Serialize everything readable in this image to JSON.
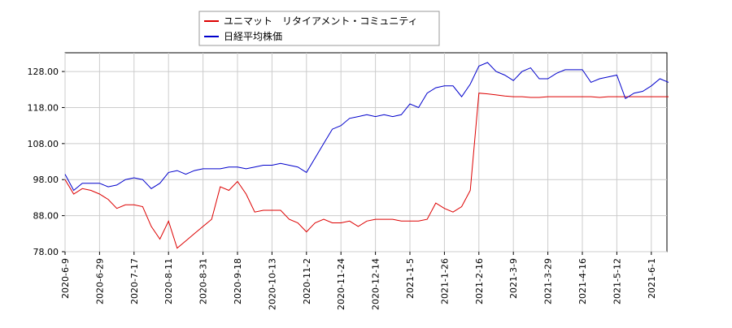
{
  "chart_data": {
    "type": "line",
    "categories": [
      "2020-6-9",
      null,
      null,
      null,
      "2020-6-29",
      null,
      null,
      null,
      "2020-7-17",
      null,
      null,
      null,
      "2020-8-11",
      null,
      null,
      null,
      "2020-8-31",
      null,
      null,
      null,
      "2020-9-18",
      null,
      null,
      null,
      "2020-10-13",
      null,
      null,
      null,
      "2020-11-2",
      null,
      null,
      null,
      "2020-11-24",
      null,
      null,
      null,
      "2020-12-14",
      null,
      null,
      null,
      "2021-1-5",
      null,
      null,
      null,
      "2021-1-26",
      null,
      null,
      null,
      "2021-2-16",
      null,
      null,
      null,
      "2021-3-9",
      null,
      null,
      null,
      "2021-3-29",
      null,
      null,
      null,
      "2021-4-16",
      null,
      null,
      null,
      "2021-5-12",
      null,
      null,
      null,
      "2021-6-1",
      null,
      null
    ],
    "series": [
      {
        "name": "ユニマット　リタイアメント・コミュニティ",
        "color": "#dd0000",
        "values": [
          98,
          94,
          95.5,
          95,
          94,
          92.5,
          90,
          91,
          91,
          90.5,
          85,
          81.5,
          86.5,
          79,
          81,
          83,
          85,
          87,
          96,
          95,
          97.5,
          94,
          89,
          89.5,
          89.5,
          89.5,
          87,
          86,
          83.5,
          86,
          87,
          86,
          86,
          86.5,
          85,
          86.5,
          87,
          87,
          87,
          86.5,
          86.5,
          86.5,
          87,
          91.5,
          90,
          89,
          90.5,
          95,
          122,
          121.8,
          121.5,
          121.2,
          121,
          121,
          120.8,
          120.8,
          121,
          121,
          121,
          121,
          121,
          121,
          120.8,
          121,
          121,
          121,
          121,
          121,
          121,
          121,
          121
        ]
      },
      {
        "name": "日経平均株価",
        "color": "#0000cc",
        "values": [
          99.5,
          95,
          97,
          97,
          97,
          96,
          96.5,
          98,
          98.5,
          98,
          95.5,
          97,
          100,
          100.5,
          99.5,
          100.5,
          101,
          101,
          101,
          101.5,
          101.5,
          101,
          101.5,
          102,
          102,
          102.5,
          102,
          101.5,
          100,
          104,
          108,
          112,
          113,
          115,
          115.5,
          116,
          115.5,
          116,
          115.5,
          116,
          119,
          118,
          122,
          123.5,
          124,
          124,
          121,
          124.5,
          129.5,
          130.5,
          128,
          127,
          125.5,
          128,
          129,
          126,
          126,
          127.5,
          128.5,
          128.5,
          128.5,
          125,
          126,
          126.5,
          127,
          120.5,
          122,
          122.5,
          124,
          126,
          125
        ]
      }
    ],
    "ylim": [
      78,
      133.2
    ],
    "yticks": [
      {
        "value": 78,
        "label": "78.00"
      },
      {
        "value": 88,
        "label": "88.00"
      },
      {
        "value": 98,
        "label": "98.00"
      },
      {
        "value": 108,
        "label": "108.00"
      },
      {
        "value": 118,
        "label": "118.00"
      },
      {
        "value": 128,
        "label": "128.00"
      }
    ],
    "grid": true
  }
}
